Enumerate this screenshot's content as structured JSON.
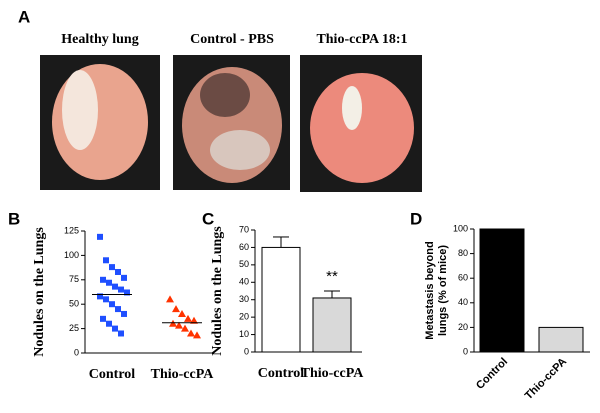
{
  "figure": {
    "panel_labels": [
      "A",
      "B",
      "C",
      "D"
    ],
    "photo_titles": [
      "Healthy lung",
      "Control - PBS",
      "Thio-ccPA 18:1"
    ]
  },
  "chart_data": [
    {
      "type": "strip",
      "ylabel": "Nodules on the Lungs",
      "categories": [
        "Control",
        "Thio-ccPA"
      ],
      "series": [
        {
          "color": "#1f4fff",
          "marker": "square",
          "values": [
            119,
            95,
            88,
            83,
            77,
            75,
            72,
            68,
            65,
            62,
            58,
            55,
            50,
            45,
            40,
            35,
            30,
            25,
            20
          ]
        },
        {
          "color": "#ff3300",
          "marker": "triangle",
          "values": [
            55,
            45,
            40,
            35,
            33,
            30,
            28,
            25,
            20,
            18
          ]
        }
      ],
      "means": [
        60,
        31
      ],
      "ylim": [
        0,
        125
      ],
      "yticks": [
        0,
        25,
        50,
        75,
        100,
        125
      ]
    },
    {
      "type": "bar",
      "ylabel": "Nodules on the Lungs",
      "categories": [
        "Control",
        "Thio-ccPA"
      ],
      "values": [
        60,
        31
      ],
      "errors": [
        6,
        4
      ],
      "colors": [
        "#ffffff",
        "#d9d9d9"
      ],
      "value_annotations": [
        null,
        "**"
      ],
      "ylim": [
        0,
        70
      ],
      "yticks": [
        0,
        10,
        20,
        30,
        40,
        50,
        60,
        70
      ]
    },
    {
      "type": "bar",
      "ylabel": [
        "Metastasis beyond",
        "lungs (% of mice)"
      ],
      "categories": [
        "Control",
        "Thio-ccPA"
      ],
      "values": [
        100,
        20
      ],
      "colors": [
        "#000000",
        "#d9d9d9"
      ],
      "xtick_rotation": -45,
      "ylim": [
        0,
        100
      ],
      "yticks": [
        0,
        20,
        40,
        60,
        80,
        100
      ]
    }
  ]
}
